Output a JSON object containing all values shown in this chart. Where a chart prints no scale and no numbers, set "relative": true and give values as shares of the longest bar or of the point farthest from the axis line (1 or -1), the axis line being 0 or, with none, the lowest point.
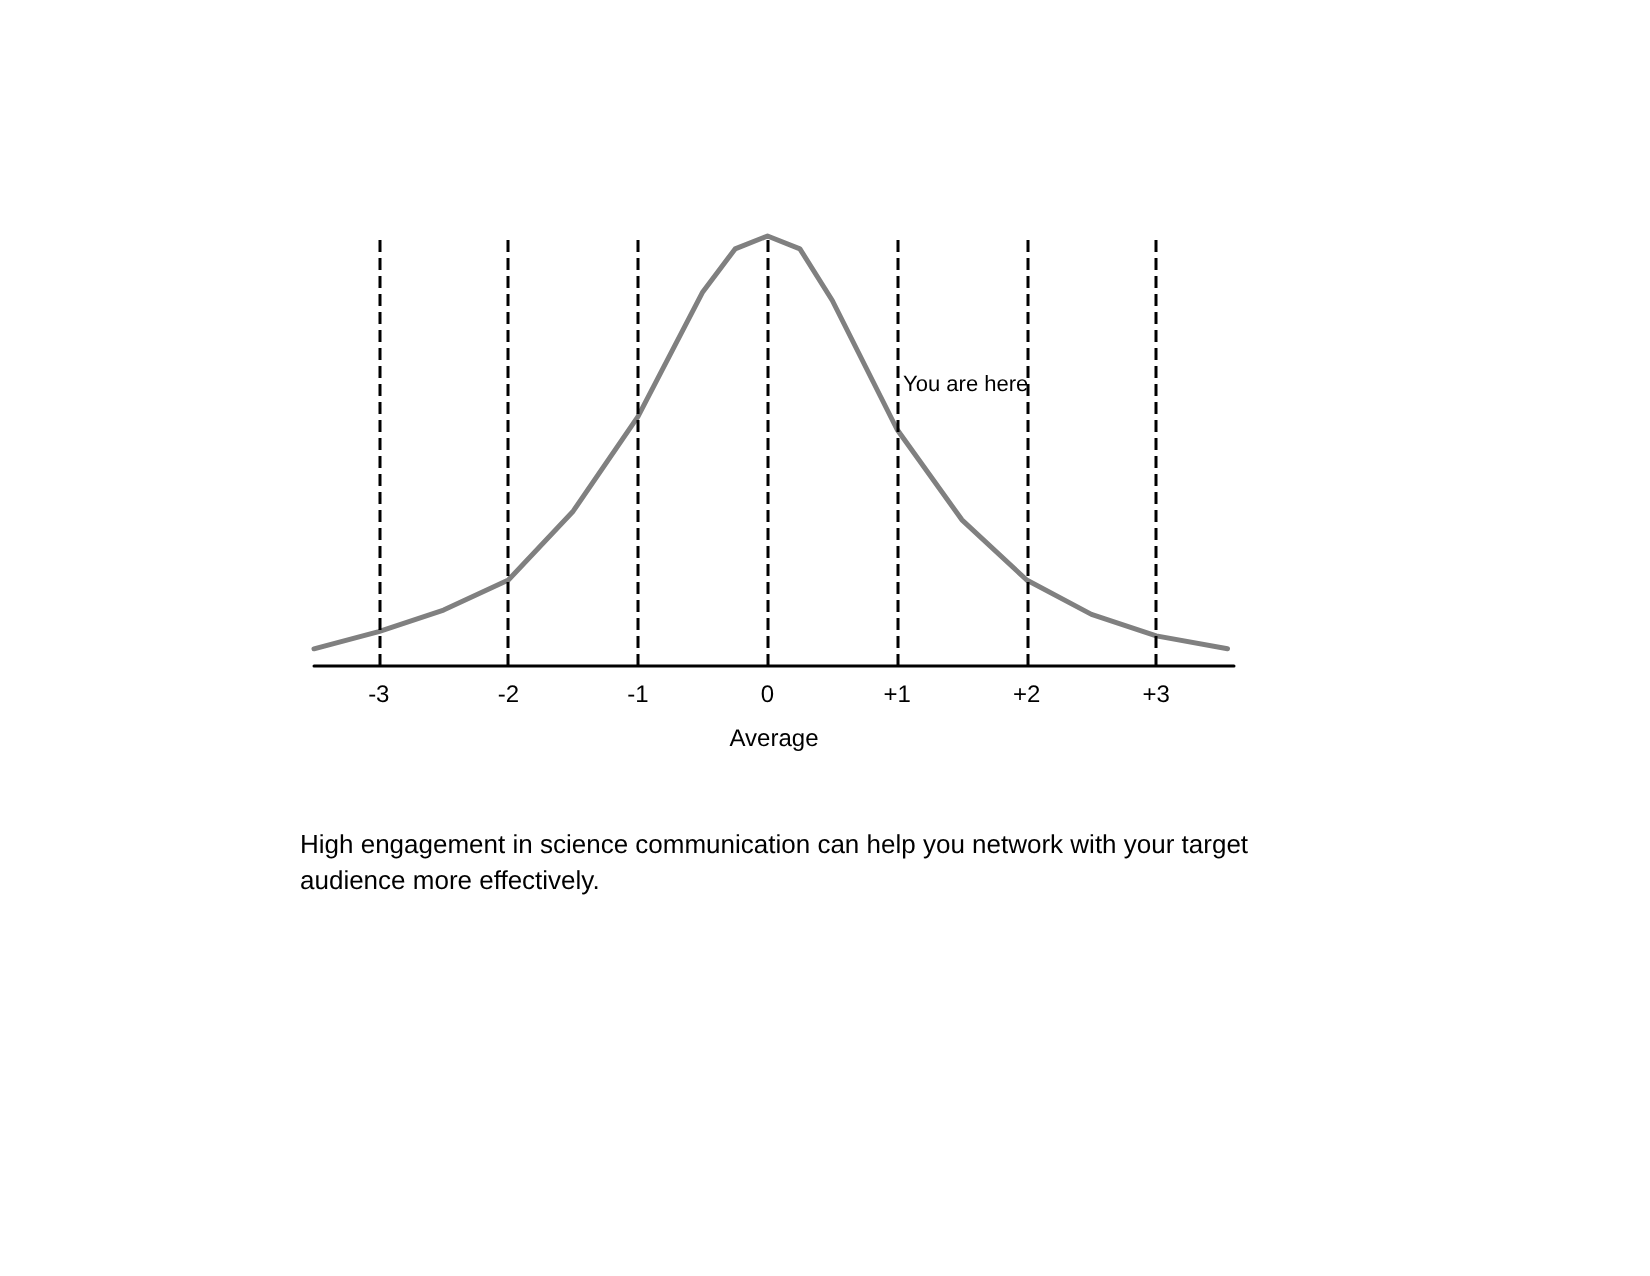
{
  "chart_data": {
    "type": "line",
    "relative": true,
    "xlim": [
      -3.5,
      3.6
    ],
    "xticks": [
      -3,
      -2,
      -1,
      0,
      {
        "value": 1,
        "label": "+1"
      },
      {
        "value": 2,
        "label": "+2"
      },
      {
        "value": 3,
        "label": "+3"
      }
    ],
    "series": [
      {
        "color": "#808080",
        "x": [
          -3.5,
          -3,
          -2.5,
          -2,
          -1.5,
          -1,
          -0.5,
          -0.25,
          0,
          0.25,
          0.5,
          1,
          1.5,
          2,
          2.5,
          3,
          3.55
        ],
        "values": [
          0.04,
          0.08,
          0.13,
          0.2,
          0.36,
          0.58,
          0.87,
          0.97,
          1,
          0.97,
          0.85,
          0.55,
          0.34,
          0.2,
          0.12,
          0.07,
          0.04
        ]
      }
    ],
    "ref_lines": [
      {
        "axis": "x",
        "value": -3,
        "color": "#000000",
        "line_style": "dashed"
      },
      {
        "axis": "x",
        "value": -2,
        "color": "#000000",
        "line_style": "dashed"
      },
      {
        "axis": "x",
        "value": -1,
        "color": "#000000",
        "line_style": "dashed"
      },
      {
        "axis": "x",
        "value": 0,
        "color": "#000000",
        "line_style": "dashed"
      },
      {
        "axis": "x",
        "value": 1,
        "color": "#000000",
        "line_style": "dashed"
      },
      {
        "axis": "x",
        "value": 2,
        "color": "#000000",
        "line_style": "dashed"
      },
      {
        "axis": "x",
        "value": 3,
        "color": "#000000",
        "line_style": "dashed"
      }
    ],
    "annotations": [
      {
        "text": "You are here",
        "x": 1,
        "y": 0.55
      },
      "High engagement in science communication can help you network with your target audience more effectively."
    ],
    "xlabel": "Average",
    "grid": false,
    "marker": "none",
    "line_style": "solid"
  }
}
